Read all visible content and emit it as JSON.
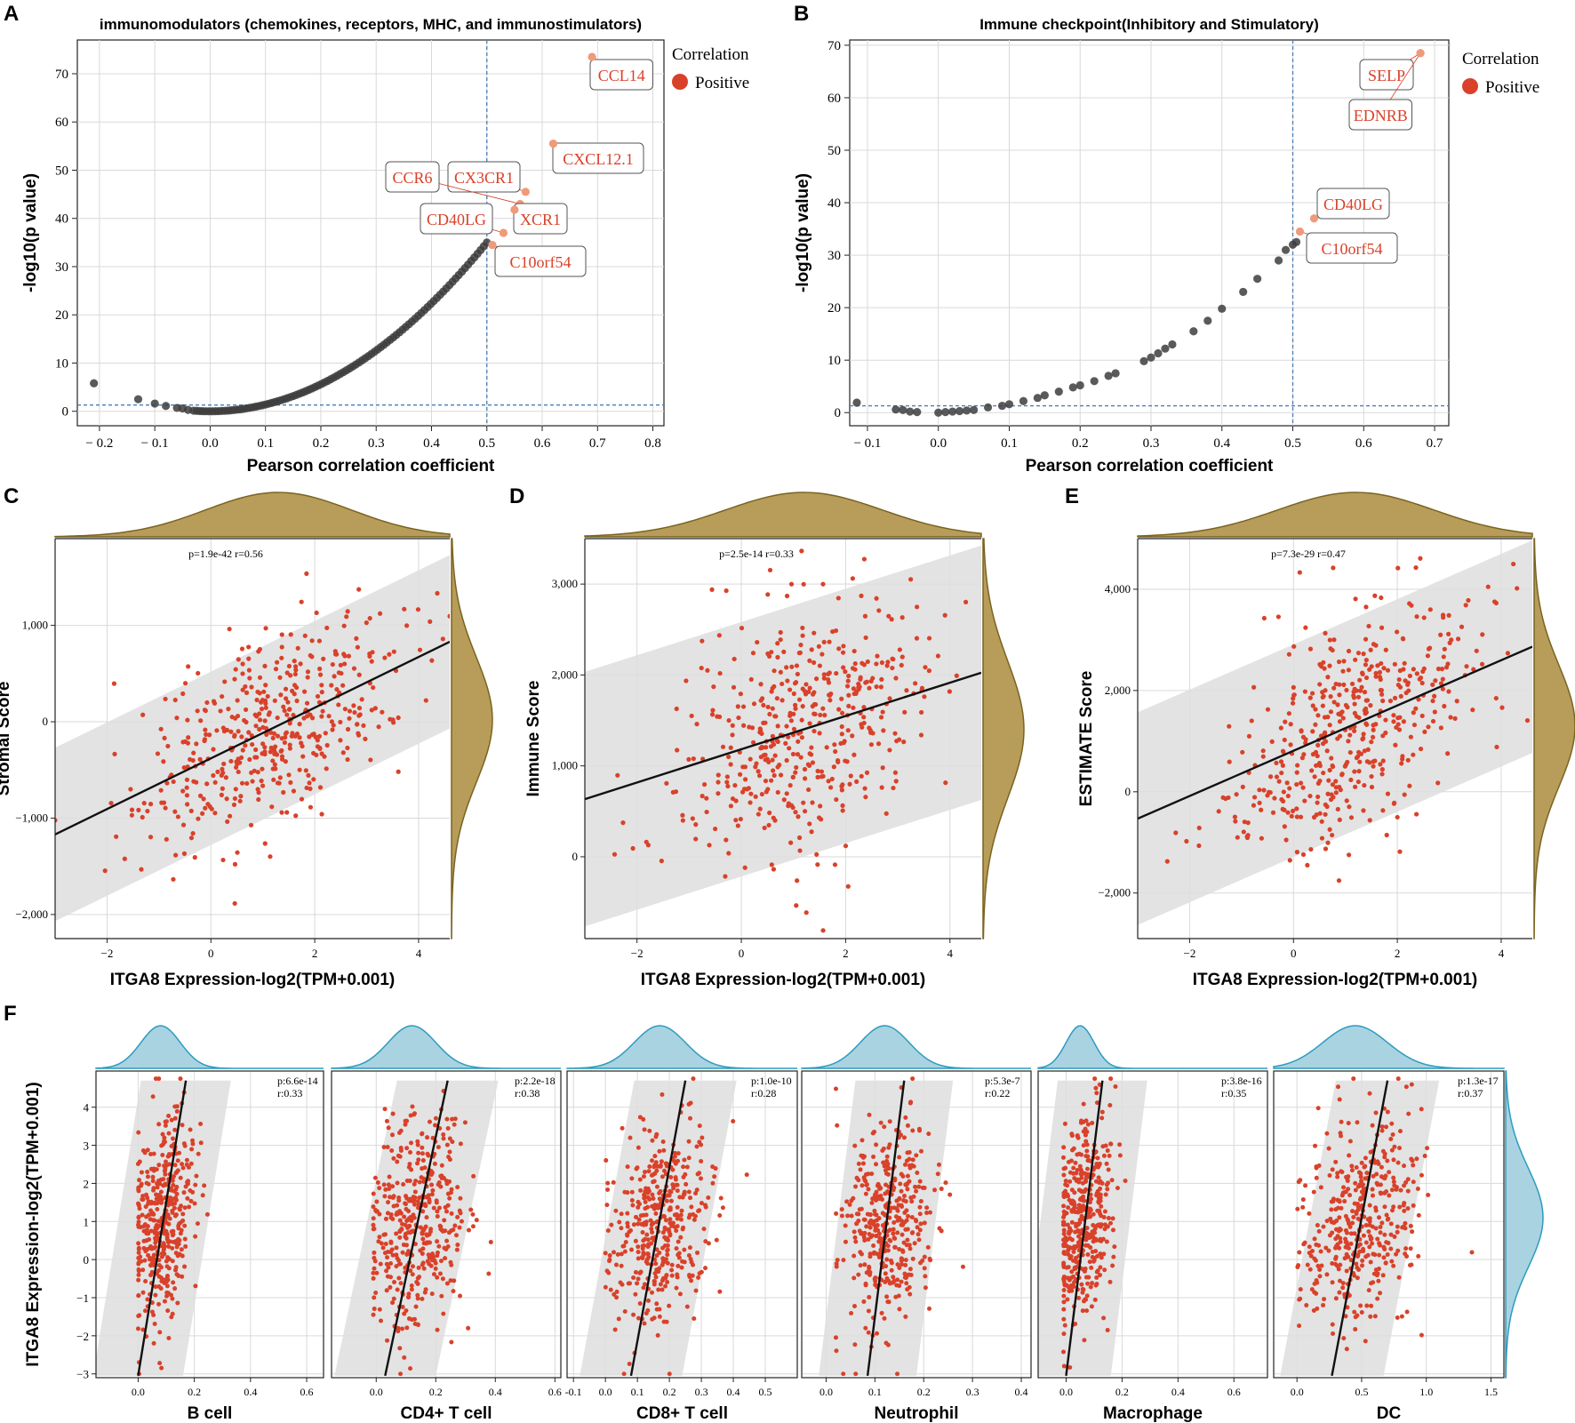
{
  "colors": {
    "point_red": "#d9412a",
    "highlight": "#ef9a7a",
    "label_text": "#d9412a",
    "point_dark": "#3d3d3d",
    "threshold": "#4a7fb8",
    "band": "#dedede",
    "fit_line": "#111111",
    "olive_fill": "#b79c5a",
    "olive_line": "#7a6420",
    "blue_fill": "#a9d3e0",
    "blue_line": "#2d9bc0",
    "grid": "#d9d9d9"
  },
  "panels": {
    "A": {
      "letter": "A"
    },
    "B": {
      "letter": "B"
    },
    "C": {
      "letter": "C"
    },
    "D": {
      "letter": "D"
    },
    "E": {
      "letter": "E"
    },
    "F": {
      "letter": "F"
    }
  },
  "chart_data": [
    {
      "id": "A",
      "type": "scatter",
      "title": "immunomodulators (chemokines, receptors, MHC, and immunostimulators)",
      "xlabel": "Pearson correlation coefficient",
      "ylabel": "-log10(p value)",
      "xlim": [
        -0.24,
        0.82
      ],
      "ylim": [
        -3,
        77
      ],
      "xticks": [
        -0.2,
        -0.1,
        0,
        0.1,
        0.2,
        0.3,
        0.4,
        0.5,
        0.6,
        0.7,
        0.8
      ],
      "xticklabels": [
        "− 0.2",
        "− 0.1",
        "0.0",
        "0.1",
        "0.2",
        "0.3",
        "0.4",
        "0.5",
        "0.6",
        "0.7",
        "0.8"
      ],
      "yticks": [
        0,
        10,
        20,
        30,
        40,
        50,
        60,
        70
      ],
      "yticklabels": [
        "0",
        "10",
        "20",
        "30",
        "40",
        "50",
        "60",
        "70"
      ],
      "vline": 0.5,
      "hline": 1.3,
      "curve": {
        "xmin": -0.03,
        "xmax": 0.5,
        "coef": 140,
        "n": 95
      },
      "extra_points": [
        [
          -0.21,
          5.8
        ],
        [
          -0.13,
          2.5
        ],
        [
          -0.1,
          1.6
        ],
        [
          -0.08,
          1.1
        ],
        [
          -0.06,
          0.7
        ],
        [
          -0.05,
          0.6
        ],
        [
          -0.04,
          0.3
        ]
      ],
      "highlighted": [
        {
          "label": "CCL14",
          "x": 0.69,
          "y": 73.5
        },
        {
          "label": "CXCL12.1",
          "x": 0.62,
          "y": 55.5
        },
        {
          "label": "CX3CR1",
          "x": 0.57,
          "y": 45.5
        },
        {
          "label": "CCR6",
          "x": 0.56,
          "y": 43.0
        },
        {
          "label": "XCR1",
          "x": 0.55,
          "y": 41.8
        },
        {
          "label": "CD40LG",
          "x": 0.53,
          "y": 37.0
        },
        {
          "label": "C10orf54",
          "x": 0.51,
          "y": 34.5
        }
      ],
      "legend": {
        "title": "Correlation",
        "entries": [
          "Positive"
        ],
        "position": "right"
      }
    },
    {
      "id": "B",
      "type": "scatter",
      "title": "Immune checkpoint(Inhibitory and Stimulatory)",
      "xlabel": "Pearson correlation coefficient",
      "ylabel": "-log10(p value)",
      "xlim": [
        -0.125,
        0.72
      ],
      "ylim": [
        -2.5,
        71
      ],
      "xticks": [
        -0.1,
        0,
        0.1,
        0.2,
        0.3,
        0.4,
        0.5,
        0.6,
        0.7
      ],
      "xticklabels": [
        "− 0.1",
        "0.0",
        "0.1",
        "0.2",
        "0.3",
        "0.4",
        "0.5",
        "0.6",
        "0.7"
      ],
      "yticks": [
        0,
        10,
        20,
        30,
        40,
        50,
        60,
        70
      ],
      "yticklabels": [
        "0",
        "10",
        "20",
        "30",
        "40",
        "50",
        "60",
        "70"
      ],
      "vline": 0.5,
      "hline": 1.3,
      "points": [
        [
          -0.115,
          1.9
        ],
        [
          -0.06,
          0.6
        ],
        [
          -0.05,
          0.5
        ],
        [
          -0.04,
          0.2
        ],
        [
          -0.03,
          0.1
        ],
        [
          0.0,
          0.0
        ],
        [
          0.01,
          0.1
        ],
        [
          0.02,
          0.2
        ],
        [
          0.03,
          0.3
        ],
        [
          0.04,
          0.4
        ],
        [
          0.05,
          0.5
        ],
        [
          0.07,
          1.0
        ],
        [
          0.09,
          1.3
        ],
        [
          0.1,
          1.6
        ],
        [
          0.12,
          2.2
        ],
        [
          0.14,
          2.8
        ],
        [
          0.15,
          3.3
        ],
        [
          0.17,
          4.0
        ],
        [
          0.19,
          4.8
        ],
        [
          0.2,
          5.2
        ],
        [
          0.22,
          6.0
        ],
        [
          0.24,
          7.0
        ],
        [
          0.25,
          7.5
        ],
        [
          0.29,
          9.8
        ],
        [
          0.3,
          10.5
        ],
        [
          0.31,
          11.3
        ],
        [
          0.32,
          12.2
        ],
        [
          0.33,
          13.0
        ],
        [
          0.36,
          15.5
        ],
        [
          0.38,
          17.5
        ],
        [
          0.4,
          19.8
        ],
        [
          0.43,
          23.0
        ],
        [
          0.45,
          25.5
        ],
        [
          0.48,
          29.0
        ],
        [
          0.49,
          31.0
        ],
        [
          0.5,
          32.0
        ],
        [
          0.505,
          32.5
        ]
      ],
      "highlighted": [
        {
          "label": "SELP",
          "x": 0.68,
          "y": 68.5
        },
        {
          "label": "EDNRB",
          "x": 0.68,
          "y": 68.5
        },
        {
          "label": "CD40LG",
          "x": 0.53,
          "y": 37.0
        },
        {
          "label": "C10orf54",
          "x": 0.51,
          "y": 34.5
        }
      ],
      "legend": {
        "title": "Correlation",
        "entries": [
          "Positive"
        ],
        "position": "right"
      }
    },
    {
      "id": "C",
      "type": "scatter",
      "annotation": "p=1.9e-42 r=0.56",
      "xlabel": "ITGA8 Expression-log2(TPM+0.001)",
      "ylabel": "Stromal Score",
      "xlim": [
        -3,
        4.6
      ],
      "ylim": [
        -2250,
        1900
      ],
      "xticks": [
        -2,
        0,
        2,
        4
      ],
      "xticklabels": [
        "−2",
        "0",
        "2",
        "4"
      ],
      "yticks": [
        -2000,
        -1000,
        0,
        1000
      ],
      "yticklabels": [
        "−2,000",
        "−1,000",
        "0",
        "1,000"
      ],
      "fit": {
        "slope": 263,
        "intercept": -380
      },
      "band_halfwidth": 900,
      "xmean": 1.2,
      "xsd": 1.2,
      "ymean": -60,
      "ysd": 500,
      "n": 450,
      "marginal_top": {
        "mean": 1.3,
        "sd": 1.4
      },
      "marginal_right": {
        "mean": 20,
        "sd": 650
      }
    },
    {
      "id": "D",
      "type": "scatter",
      "annotation": "p=2.5e-14 r=0.33",
      "xlabel": "ITGA8 Expression-log2(TPM+0.001)",
      "ylabel": "Immune Score",
      "xlim": [
        -3,
        4.6
      ],
      "ylim": [
        -900,
        3500
      ],
      "xticks": [
        -2,
        0,
        2,
        4
      ],
      "xticklabels": [
        "−2",
        "0",
        "2",
        "4"
      ],
      "yticks": [
        0,
        1000,
        2000,
        3000
      ],
      "yticklabels": [
        "0",
        "1,000",
        "2,000",
        "3,000"
      ],
      "fit": {
        "slope": 183,
        "intercept": 1183
      },
      "band_halfwidth": 1400,
      "xmean": 1.2,
      "xsd": 1.2,
      "ymean": 1380,
      "ysd": 680,
      "n": 450,
      "marginal_top": {
        "mean": 1.2,
        "sd": 1.5
      },
      "marginal_right": {
        "mean": 1400,
        "sd": 750
      }
    },
    {
      "id": "E",
      "type": "scatter",
      "annotation": "p=7.3e-29 r=0.47",
      "xlabel": "ITGA8 Expression-log2(TPM+0.001)",
      "ylabel": "ESTIMATE Score",
      "xlim": [
        -3,
        4.6
      ],
      "ylim": [
        -2900,
        5000
      ],
      "xticks": [
        -2,
        0,
        2,
        4
      ],
      "xticklabels": [
        "−2",
        "0",
        "2",
        "4"
      ],
      "yticks": [
        -2000,
        0,
        2000,
        4000
      ],
      "yticklabels": [
        "−2,000",
        "0",
        "2,000",
        "4,000"
      ],
      "fit": {
        "slope": 447,
        "intercept": 810
      },
      "band_halfwidth": 2100,
      "xmean": 1.2,
      "xsd": 1.2,
      "ymean": 1320,
      "ysd": 1050,
      "n": 450,
      "marginal_top": {
        "mean": 1.2,
        "sd": 1.5
      },
      "marginal_right": {
        "mean": 1300,
        "sd": 1200
      }
    },
    {
      "id": "F",
      "type": "scatter",
      "ylabel": "ITGA8 Expression-log2(TPM+0.001)",
      "ylim": [
        -3.1,
        4.95
      ],
      "yticks": [
        -3,
        -2,
        -1,
        0,
        1,
        2,
        3,
        4
      ],
      "yticklabels": [
        "−3",
        "−2",
        "−1",
        "0",
        "1",
        "2",
        "3",
        "4"
      ],
      "ymean": 1.0,
      "ysd": 1.35,
      "n": 420,
      "marginal_right": {
        "mean": 1.1,
        "sd": 1.3
      },
      "subplots": [
        {
          "xlabel": "B cell",
          "p": "p:6.6e-14",
          "r": "r:0.33",
          "xlim": [
            -0.15,
            0.66
          ],
          "xticks": [
            0,
            0.2,
            0.4,
            0.6
          ],
          "xticklabels": [
            "0.0",
            "0.2",
            "0.4",
            "0.6"
          ],
          "fit_x": [
            0.0,
            0.17
          ],
          "band_dx": 0.16,
          "xmean": 0.08,
          "xsd": 0.06,
          "xmin": 0.0,
          "marginal_mean": 0.08,
          "marginal_sd": 0.07
        },
        {
          "xlabel": "CD4+ T cell",
          "p": "p:2.2e-18",
          "r": "r:0.38",
          "xlim": [
            -0.15,
            0.62
          ],
          "xticks": [
            0,
            0.2,
            0.4,
            0.6
          ],
          "xticklabels": [
            "0.0",
            "0.2",
            "0.4",
            "0.6"
          ],
          "fit_x": [
            0.03,
            0.24
          ],
          "band_dx": 0.17,
          "xmean": 0.13,
          "xsd": 0.08,
          "xmin": -0.01,
          "marginal_mean": 0.12,
          "marginal_sd": 0.08
        },
        {
          "xlabel": "CD8+ T cell",
          "p": "p:1.0e-10",
          "r": "r:0.28",
          "xlim": [
            -0.12,
            0.6
          ],
          "xticks": [
            -0.1,
            0,
            0.1,
            0.2,
            0.3,
            0.4,
            0.5
          ],
          "xticklabels": [
            "-0.1",
            "0.0",
            "0.1",
            "0.2",
            "0.3",
            "0.4",
            "0.5"
          ],
          "fit_x": [
            0.08,
            0.25
          ],
          "band_dx": 0.16,
          "xmean": 0.17,
          "xsd": 0.08,
          "xmin": 0.0,
          "marginal_mean": 0.17,
          "marginal_sd": 0.08
        },
        {
          "xlabel": "Neutrophil",
          "p": "p:5.3e-7",
          "r": "r:0.22",
          "xlim": [
            -0.05,
            0.42
          ],
          "xticks": [
            0,
            0.1,
            0.2,
            0.3,
            0.4
          ],
          "xticklabels": [
            "0.0",
            "0.1",
            "0.2",
            "0.3",
            "0.4"
          ],
          "fit_x": [
            0.085,
            0.16
          ],
          "band_dx": 0.1,
          "xmean": 0.13,
          "xsd": 0.045,
          "xmin": 0.02,
          "marginal_mean": 0.12,
          "marginal_sd": 0.05
        },
        {
          "xlabel": "Macrophage",
          "p": "p:3.8e-16",
          "r": "r:0.35",
          "xlim": [
            -0.1,
            0.72
          ],
          "xticks": [
            0,
            0.2,
            0.4,
            0.6
          ],
          "xticklabels": [
            "0.0",
            "0.2",
            "0.4",
            "0.6"
          ],
          "fit_x": [
            0.0,
            0.13
          ],
          "band_dx": 0.16,
          "xmean": 0.06,
          "xsd": 0.05,
          "xmin": -0.01,
          "marginal_mean": 0.05,
          "marginal_sd": 0.05
        },
        {
          "xlabel": "DC",
          "p": "p:1.3e-17",
          "r": "r:0.37",
          "xlim": [
            -0.18,
            1.6
          ],
          "xticks": [
            0,
            0.5,
            1.0,
            1.5
          ],
          "xticklabels": [
            "0.0",
            "0.5",
            "1.0",
            "1.5"
          ],
          "fit_x": [
            0.27,
            0.7
          ],
          "band_dx": 0.4,
          "xmean": 0.5,
          "xsd": 0.22,
          "xmin": 0.0,
          "marginal_mean": 0.45,
          "marginal_sd": 0.25
        }
      ]
    }
  ]
}
